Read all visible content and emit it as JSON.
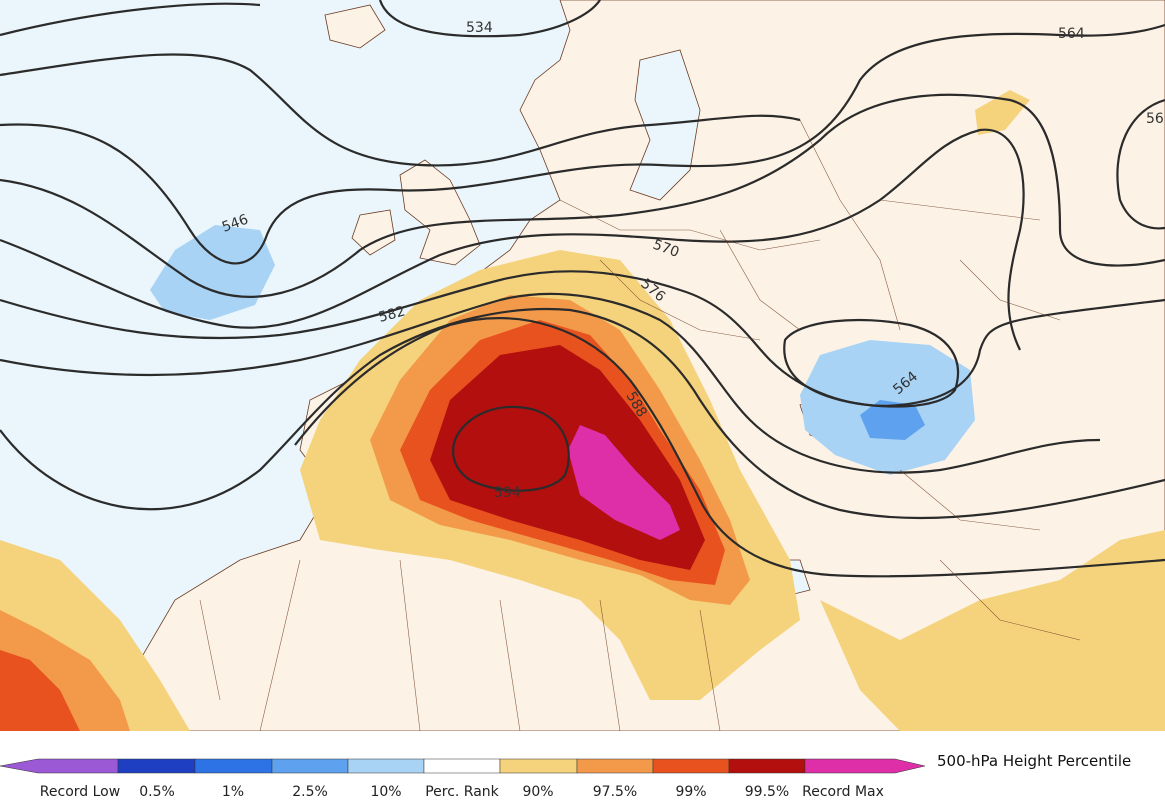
{
  "map": {
    "contour_labels": [
      "534",
      "564",
      "56",
      "546",
      "570",
      "576",
      "582",
      "588",
      "594",
      "564"
    ]
  },
  "legend": {
    "title": "500-hPa Height Percentile",
    "labels": [
      "Record Low",
      "0.5%",
      "1%",
      "2.5%",
      "10%",
      "Perc. Rank",
      "90%",
      "97.5%",
      "99%",
      "99.5%",
      "Record Max"
    ],
    "colors": [
      "#9b59d6",
      "#1f3fc2",
      "#2e73e6",
      "#5ea1ee",
      "#a8d3f5",
      "#ffffff",
      "#f5d27c",
      "#f39a4a",
      "#e8521f",
      "#b30f0f",
      "#de2fa9"
    ]
  }
}
